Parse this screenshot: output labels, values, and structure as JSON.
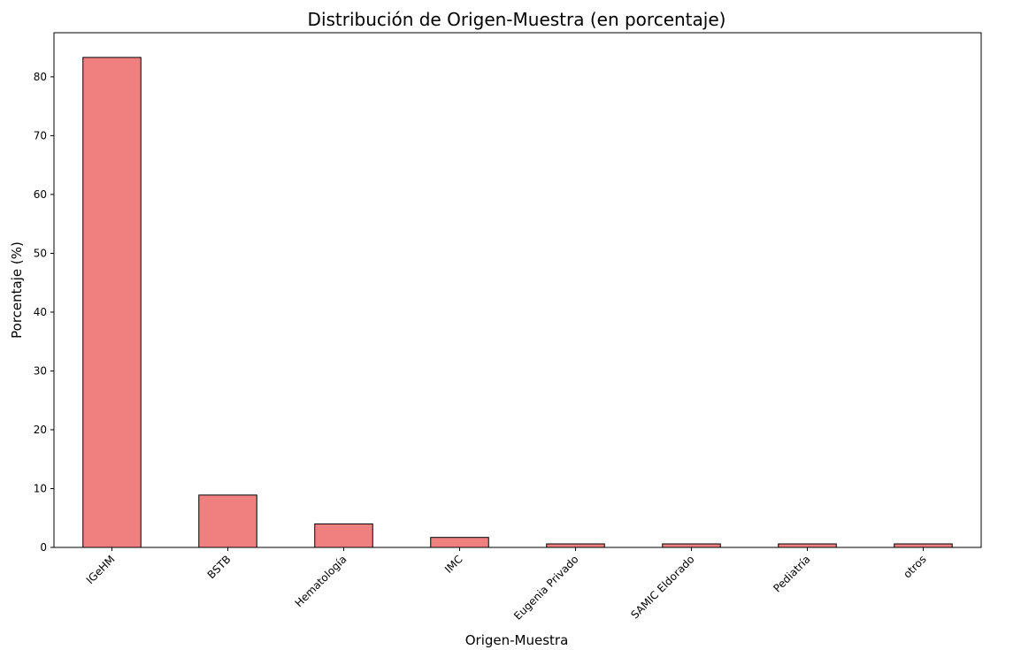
{
  "chart_data": {
    "type": "bar",
    "title": "Distribución de Origen-Muestra (en porcentaje)",
    "xlabel": "Origen-Muestra",
    "ylabel": "Porcentaje (%)",
    "categories": [
      "IGeHM",
      "BSTB",
      "Hematología",
      "IMC",
      "Eugenia Privado",
      "SAMIC Eldorado",
      "Pediatría",
      "otros"
    ],
    "values": [
      83.3,
      8.9,
      4.0,
      1.7,
      0.6,
      0.6,
      0.6,
      0.6
    ],
    "ylim": [
      0,
      87.5
    ],
    "yticks": [
      0,
      10,
      20,
      30,
      40,
      50,
      60,
      70,
      80
    ],
    "grid": false,
    "bar_color": "#f08080",
    "edge_color": "#000000"
  }
}
